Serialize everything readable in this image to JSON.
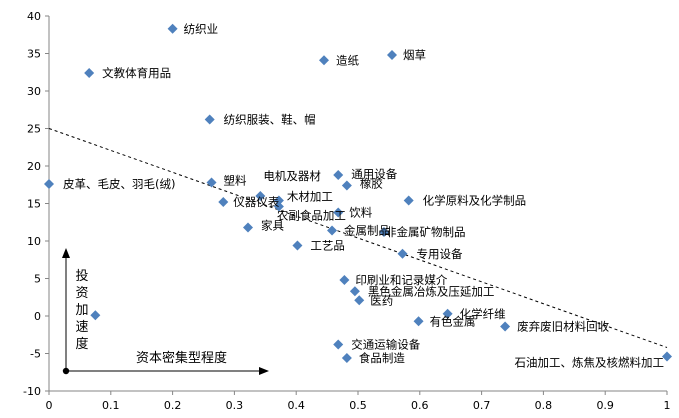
{
  "chart_data": {
    "type": "scatter",
    "title": "",
    "xlabel": "",
    "ylabel": "",
    "xlim": [
      0,
      1
    ],
    "ylim": [
      -10,
      40
    ],
    "xticks": [
      "0",
      "0.1",
      "0.2",
      "0.3",
      "0.4",
      "0.5",
      "0.6",
      "0.7",
      "0.8",
      "0.9",
      "1"
    ],
    "yticks": [
      "40",
      "35",
      "30",
      "25",
      "20",
      "15",
      "10",
      "5",
      "0",
      "-5",
      "-10"
    ],
    "grid": false,
    "legend": "none",
    "marker_color": "#4F81BD",
    "trendline": {
      "style": "dashed",
      "from": [
        0,
        25.0
      ],
      "to": [
        1,
        -4.2
      ]
    },
    "points": [
      {
        "label": "纺织业",
        "x": 0.2,
        "y": 38.3
      },
      {
        "label": "文教体育用品",
        "x": 0.065,
        "y": 32.4
      },
      {
        "label": "造纸",
        "x": 0.445,
        "y": 34.1
      },
      {
        "label": "烟草",
        "x": 0.555,
        "y": 34.8
      },
      {
        "label": "纺织服装、鞋、帽",
        "x": 0.26,
        "y": 26.2
      },
      {
        "label": "皮革、毛皮、羽毛(绒)",
        "x": 0.0,
        "y": 17.6
      },
      {
        "label": "塑料",
        "x": 0.263,
        "y": 17.8
      },
      {
        "label": "电机及器材",
        "x": 0.342,
        "y": 16.0
      },
      {
        "label": "仪器仪表",
        "x": 0.282,
        "y": 15.2
      },
      {
        "label": "木材加工",
        "x": 0.372,
        "y": 15.4
      },
      {
        "label": "农副食品加工",
        "x": 0.372,
        "y": 14.6
      },
      {
        "label": "通用设备",
        "x": 0.468,
        "y": 18.8
      },
      {
        "label": "橡胶",
        "x": 0.482,
        "y": 17.4
      },
      {
        "label": "饮料",
        "x": 0.468,
        "y": 13.8
      },
      {
        "label": "化学原料及化学制品",
        "x": 0.582,
        "y": 15.4
      },
      {
        "label": "家具",
        "x": 0.322,
        "y": 11.8
      },
      {
        "label": "金属制品",
        "x": 0.458,
        "y": 11.4
      },
      {
        "label": "非金属矿物制品",
        "x": 0.542,
        "y": 11.2
      },
      {
        "label": "工艺品",
        "x": 0.402,
        "y": 9.4
      },
      {
        "label": "专用设备",
        "x": 0.572,
        "y": 8.3
      },
      {
        "label": "印刷业和记录媒介",
        "x": 0.478,
        "y": 4.8
      },
      {
        "label": "黑色金属冶炼及压延加工",
        "x": 0.495,
        "y": 3.3
      },
      {
        "label": "医药",
        "x": 0.502,
        "y": 2.1
      },
      {
        "label": "化学纤维",
        "x": 0.645,
        "y": 0.3
      },
      {
        "label": "有色金属",
        "x": 0.598,
        "y": -0.7
      },
      {
        "label": "废弃废旧材料回收",
        "x": 0.738,
        "y": -1.4
      },
      {
        "label": "交通运输设备",
        "x": 0.468,
        "y": -3.8
      },
      {
        "label": "食品制造",
        "x": 0.482,
        "y": -5.6
      },
      {
        "label": "石油加工、炼焦及核燃料加工",
        "x": 1.0,
        "y": -5.4
      },
      {
        "label": "",
        "x": 0.075,
        "y": 0.1
      }
    ],
    "annotations": {
      "y_arrow_label": "投资加速度",
      "x_arrow_label": "资本密集型程度"
    }
  }
}
